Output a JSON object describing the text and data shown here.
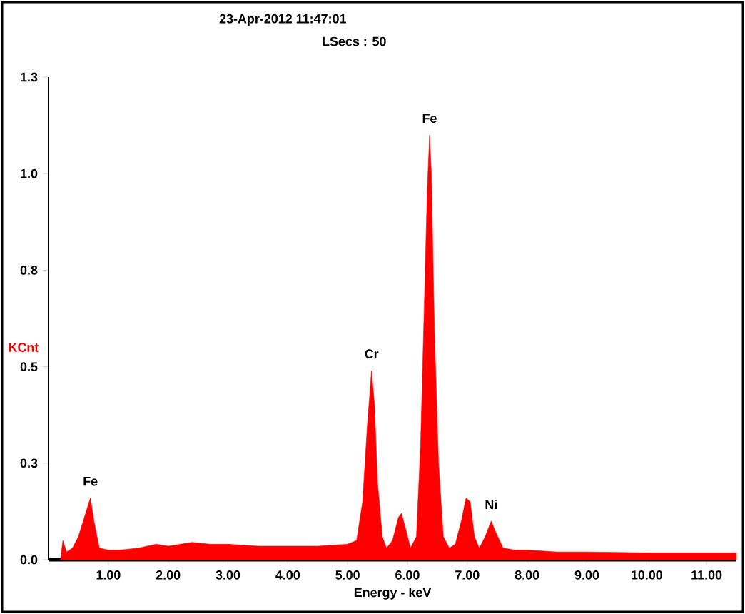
{
  "chart_data": {
    "type": "area",
    "title": "23-Apr-2012 11:47:01",
    "subtitle": "LSecs : 50",
    "xlabel": "Energy - keV",
    "ylabel": "KCnt",
    "color": "#ff0000",
    "x": [
      0.2,
      0.24,
      0.3,
      0.4,
      0.5,
      0.6,
      0.7,
      0.76,
      0.85,
      1.0,
      1.2,
      1.5,
      1.8,
      2.0,
      2.4,
      2.7,
      3.0,
      3.5,
      4.0,
      4.5,
      5.0,
      5.15,
      5.25,
      5.33,
      5.4,
      5.45,
      5.5,
      5.58,
      5.65,
      5.75,
      5.85,
      5.9,
      5.97,
      6.05,
      6.15,
      6.22,
      6.28,
      6.33,
      6.37,
      6.4,
      6.45,
      6.52,
      6.6,
      6.7,
      6.8,
      6.9,
      6.98,
      7.05,
      7.12,
      7.2,
      7.3,
      7.4,
      7.48,
      7.6,
      7.8,
      8.0,
      8.5,
      9.0,
      10.0,
      11.0,
      11.5
    ],
    "values": [
      0.0,
      0.05,
      0.02,
      0.03,
      0.06,
      0.11,
      0.16,
      0.1,
      0.03,
      0.025,
      0.025,
      0.03,
      0.04,
      0.035,
      0.045,
      0.04,
      0.04,
      0.035,
      0.035,
      0.035,
      0.04,
      0.05,
      0.15,
      0.35,
      0.49,
      0.4,
      0.2,
      0.06,
      0.03,
      0.05,
      0.11,
      0.12,
      0.08,
      0.03,
      0.06,
      0.3,
      0.65,
      0.95,
      1.1,
      1.0,
      0.6,
      0.25,
      0.06,
      0.03,
      0.04,
      0.1,
      0.16,
      0.15,
      0.06,
      0.03,
      0.06,
      0.1,
      0.07,
      0.03,
      0.025,
      0.025,
      0.02,
      0.02,
      0.018,
      0.018,
      0.018
    ],
    "xlim": [
      0,
      11.5
    ],
    "xticks": [
      {
        "value": 1,
        "label": "1.00"
      },
      {
        "value": 2,
        "label": "2.00"
      },
      {
        "value": 3,
        "label": "3.00"
      },
      {
        "value": 4,
        "label": "4.00"
      },
      {
        "value": 5,
        "label": "5.00"
      },
      {
        "value": 6,
        "label": "6.00"
      },
      {
        "value": 7,
        "label": "7.00"
      },
      {
        "value": 8,
        "label": "8.00"
      },
      {
        "value": 9,
        "label": "9.00"
      },
      {
        "value": 10,
        "label": "10.00"
      },
      {
        "value": 11,
        "label": "11.00"
      }
    ],
    "ylim": [
      0,
      1.25
    ],
    "yticks": [
      {
        "value": 0,
        "label": "0.0"
      },
      {
        "value": 0.25,
        "label": "0.3"
      },
      {
        "value": 0.5,
        "label": "0.5"
      },
      {
        "value": 0.75,
        "label": "0.8"
      },
      {
        "value": 1.0,
        "label": "1.0"
      },
      {
        "value": 1.25,
        "label": "1.3"
      }
    ],
    "annotations": [
      {
        "text": "Fe",
        "x": 0.7,
        "y": 0.16
      },
      {
        "text": "Cr",
        "x": 5.4,
        "y": 0.49
      },
      {
        "text": "Fe",
        "x": 6.37,
        "y": 1.1
      },
      {
        "text": "Ni",
        "x": 7.4,
        "y": 0.1
      }
    ],
    "marker": "none"
  }
}
